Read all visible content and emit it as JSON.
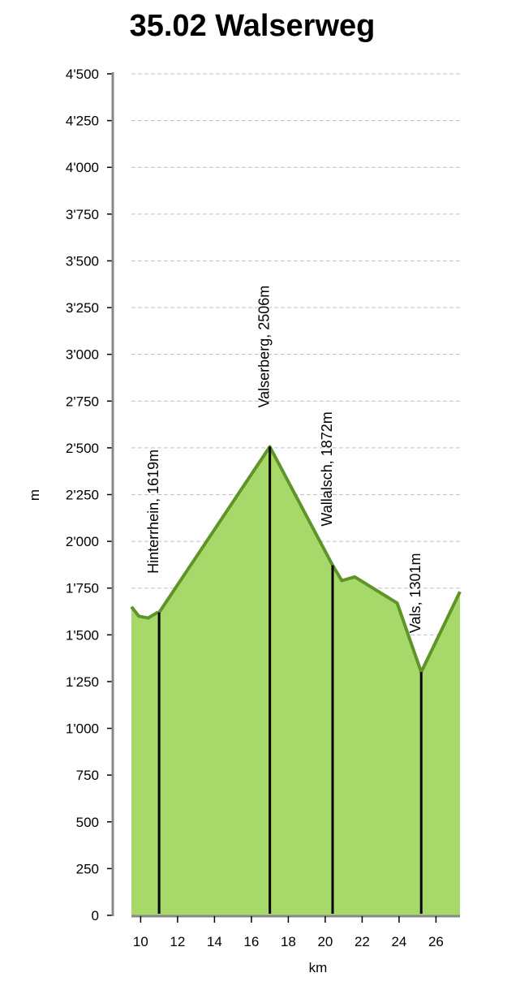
{
  "chart_data": {
    "type": "area",
    "title": "35.02 Walserweg",
    "xlabel": "km",
    "ylabel": "m",
    "xlim": [
      9.5,
      27.3
    ],
    "ylim": [
      0,
      4500
    ],
    "x_ticks": [
      10,
      12,
      14,
      16,
      18,
      20,
      22,
      24,
      26
    ],
    "x_tick_labels": [
      "10",
      "12",
      "14",
      "16",
      "18",
      "20",
      "22",
      "24",
      "26"
    ],
    "y_ticks": [
      0,
      250,
      500,
      750,
      1000,
      1250,
      1500,
      1750,
      2000,
      2250,
      2500,
      2750,
      3000,
      3250,
      3500,
      3750,
      4000,
      4250,
      4500
    ],
    "y_tick_labels": [
      "0",
      "250",
      "500",
      "750",
      "1'000",
      "1'250",
      "1'500",
      "1'750",
      "2'000",
      "2'250",
      "2'500",
      "2'750",
      "3'000",
      "3'250",
      "3'500",
      "3'750",
      "4'000",
      "4'250",
      "4'500"
    ],
    "grid": "horizontal-dashed",
    "colors": {
      "fill": "#a6d96a",
      "line": "#5e9428",
      "grid": "#c0c0c0",
      "axis": "#888888",
      "marker": "#000000"
    },
    "profile": {
      "x": [
        9.5,
        9.9,
        10.4,
        10.9,
        11.0,
        17.0,
        20.4,
        20.9,
        21.6,
        23.9,
        25.2,
        27.3
      ],
      "y": [
        1650,
        1600,
        1590,
        1619,
        1619,
        2506,
        1872,
        1790,
        1810,
        1670,
        1301,
        1730
      ]
    },
    "waypoints": [
      {
        "name": "Hinterrhein, 1619m",
        "x": 11.0,
        "y": 1619
      },
      {
        "name": "Valserberg, 2506m",
        "x": 17.0,
        "y": 2506
      },
      {
        "name": "Wallalsch, 1872m",
        "x": 20.4,
        "y": 1872
      },
      {
        "name": "Vals, 1301m",
        "x": 25.2,
        "y": 1301
      }
    ]
  }
}
